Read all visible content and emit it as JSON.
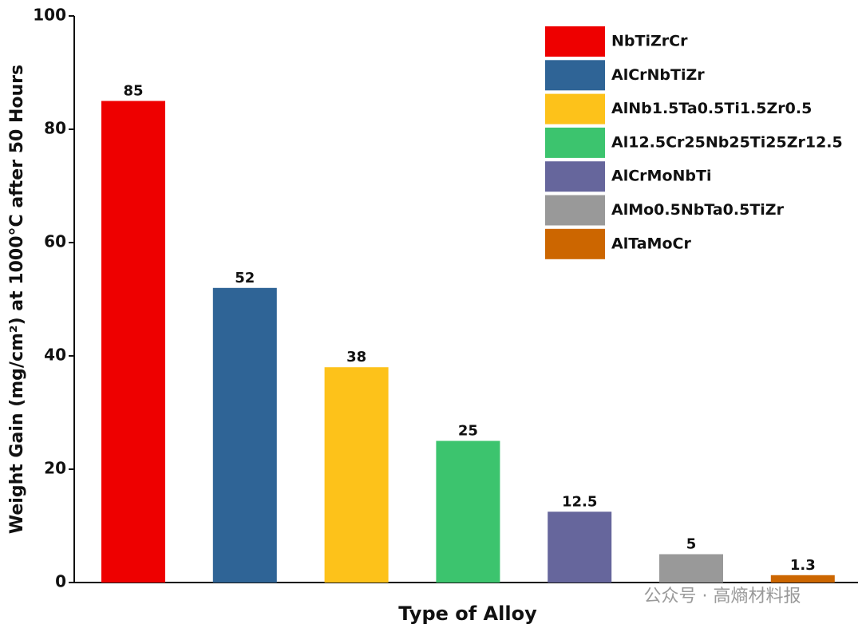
{
  "chart_data": {
    "type": "bar",
    "x_label": "Type of Alloy",
    "y_label": "Weight Gain (mg/cm²) at 1000°C after 50 Hours",
    "ylim": [
      0,
      100
    ],
    "yticks": [
      0,
      20,
      40,
      60,
      80,
      100
    ],
    "legend": "upper right",
    "series": [
      {
        "name": "NbTiZrCr",
        "color": "#ee0000",
        "values": [
          85
        ]
      },
      {
        "name": "AlCrNbTiZr",
        "color": "#2f6496",
        "values": [
          52
        ]
      },
      {
        "name": "AlNb1.5Ta0.5Ti1.5Zr0.5",
        "color": "#fdc21a",
        "values": [
          38
        ]
      },
      {
        "name": "Al12.5Cr25Nb25Ti25Zr12.5",
        "color": "#3cc46e",
        "values": [
          25
        ]
      },
      {
        "name": "AlCrMoNbTi",
        "color": "#66669c",
        "values": [
          12.5
        ]
      },
      {
        "name": "AlMo0.5NbTa0.5TiZr",
        "color": "#999999",
        "values": [
          5
        ]
      },
      {
        "name": "AlTaMoCr",
        "color": "#cc6600",
        "values": [
          1.3
        ]
      }
    ],
    "watermark": "公众号 · 高熵材料报"
  }
}
